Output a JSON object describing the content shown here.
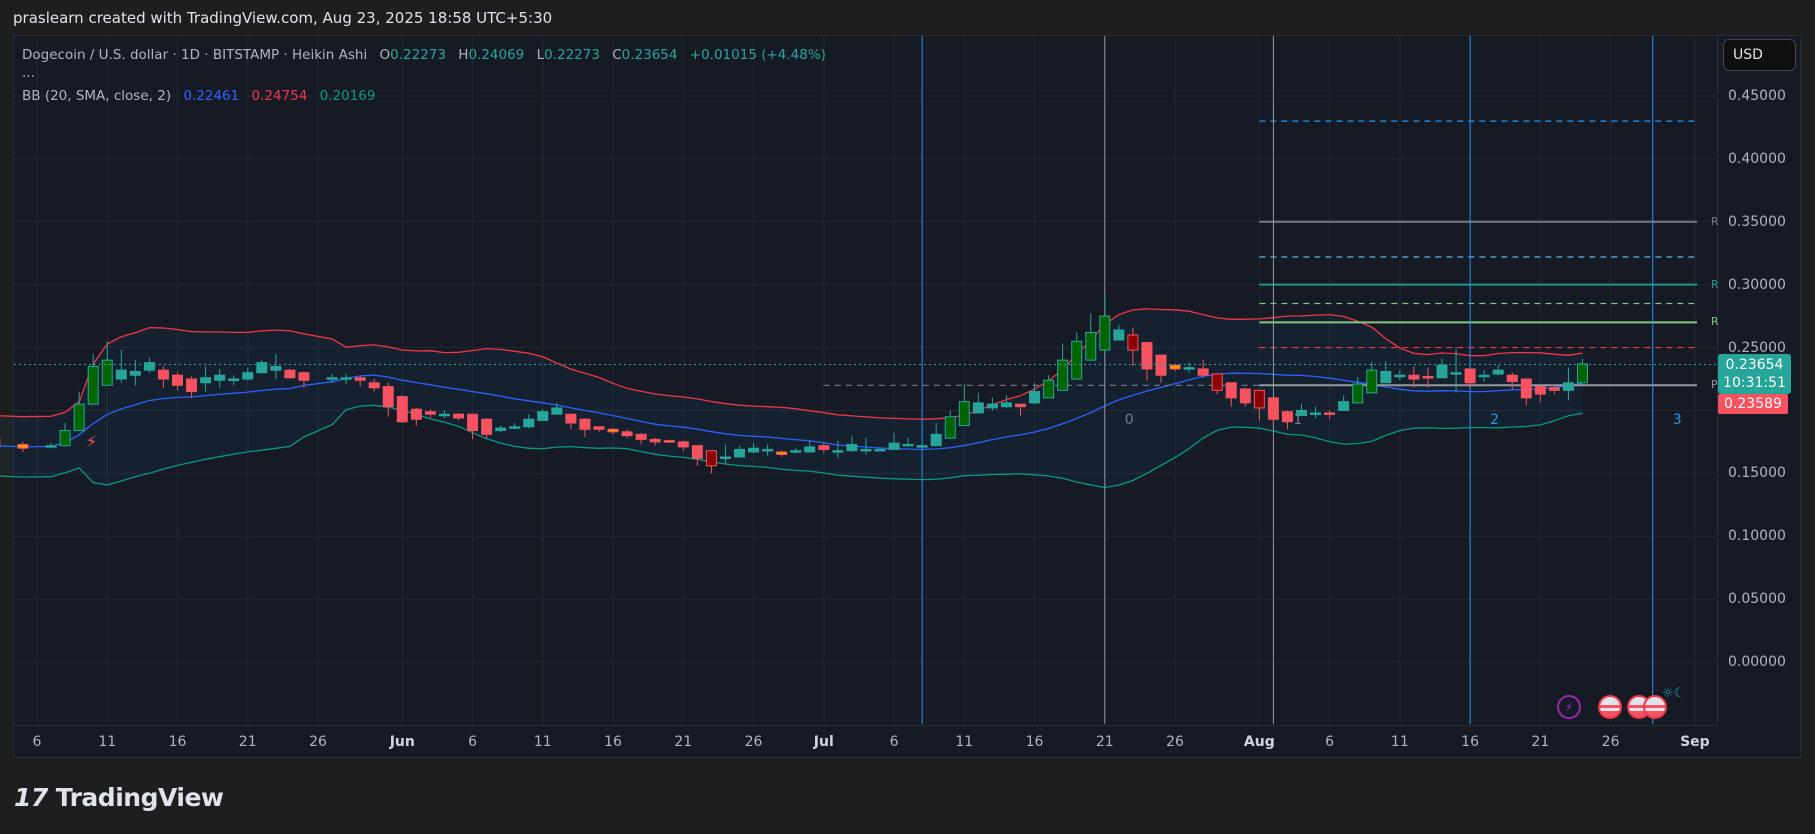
{
  "caption": "praslearn created with TradingView.com, Aug 23, 2025 18:58 UTC+5:30",
  "legend": {
    "symbol": "Dogecoin / U.S. dollar · 1D · BITSTAMP · Heikin Ashi",
    "o_label": "O",
    "o": "0.22273",
    "h_label": "H",
    "h": "0.24069",
    "l_label": "L",
    "l": "0.22273",
    "c_label": "C",
    "c": "0.23654",
    "change": "+0.01015 (+4.48%)",
    "more": "...",
    "bb_label": "BB (20, SMA, close, 2)",
    "bb_basis": "0.22461",
    "bb_upper": "0.24754",
    "bb_lower": "0.20169"
  },
  "currency_button": "USD",
  "price_badge": {
    "price": "0.23654",
    "countdown": "10:31:51",
    "color": "#26a69a"
  },
  "prev_badge": {
    "price": "0.23589",
    "color": "#f7525f"
  },
  "level_labels": {
    "r1": "R",
    "r2": "R",
    "r3": "R",
    "p": "P"
  },
  "fib_time_labels": [
    "0",
    "1",
    "2",
    "3"
  ],
  "logo_text": "TradingView",
  "logo_mark": "17",
  "colors": {
    "up": "#26a69a",
    "down": "#f7525f",
    "up_strong": "#006400",
    "down_strong": "#8b0000",
    "neutral": "#ff9800",
    "bb_basis": "#2962ff",
    "bb_upper": "#f23645",
    "bb_lower": "#089981",
    "background": "#161a25",
    "grid": "#232734",
    "fib_time": "#2196f3"
  },
  "chart_data": {
    "type": "candlestick",
    "title": "Dogecoin / U.S. dollar · 1D · BITSTAMP · Heikin Ashi",
    "ylabel": "USD",
    "ylim": [
      -0.04,
      0.47
    ],
    "y_ticks": [
      "0.45000",
      "0.40000",
      "0.35000",
      "0.30000",
      "0.25000",
      "0.20000",
      "0.15000",
      "0.10000",
      "0.05000",
      "0.00000"
    ],
    "x_ticks": [
      "6",
      "11",
      "16",
      "21",
      "26",
      "Jun",
      "6",
      "11",
      "16",
      "21",
      "26",
      "Jul",
      "6",
      "11",
      "16",
      "21",
      "26",
      "Aug",
      "6",
      "11",
      "16",
      "21",
      "26",
      "Sep"
    ],
    "grid": true,
    "last_price": 0.23654,
    "indicators": {
      "bollinger_bands": {
        "period": 20,
        "type": "SMA",
        "source": "close",
        "stddev": 2,
        "basis": 0.22461,
        "upper": 0.24754,
        "lower": 0.20169
      }
    },
    "horizontal_levels": [
      {
        "label": "",
        "price": 0.43,
        "style": "dashed",
        "color": "#2196f3"
      },
      {
        "label": "R",
        "price": 0.35,
        "style": "solid",
        "color": "#787b86"
      },
      {
        "label": "",
        "price": 0.322,
        "style": "dashed",
        "color": "#5fb8e8"
      },
      {
        "label": "R",
        "price": 0.3,
        "style": "solid",
        "color": "#1a9a8a"
      },
      {
        "label": "",
        "price": 0.285,
        "style": "dashed",
        "color": "#81c784"
      },
      {
        "label": "R",
        "price": 0.27,
        "style": "solid",
        "color": "#81c784"
      },
      {
        "label": "",
        "price": 0.25,
        "style": "dashed",
        "color": "#f23645"
      },
      {
        "label": "P",
        "price": 0.22,
        "style": "solid",
        "color": "#9598a1"
      }
    ],
    "fib_time_zones": [
      "0",
      "1",
      "2",
      "3"
    ],
    "candles_approx": [
      {
        "d": "May 3",
        "o": 0.178,
        "c": 0.172,
        "h": 0.18,
        "l": 0.17
      },
      {
        "d": "May 5",
        "o": 0.173,
        "c": 0.17,
        "h": 0.175,
        "l": 0.167
      },
      {
        "d": "May 7",
        "o": 0.171,
        "c": 0.172,
        "h": 0.174,
        "l": 0.17
      },
      {
        "d": "May 8",
        "o": 0.172,
        "c": 0.184,
        "h": 0.19,
        "l": 0.172
      },
      {
        "d": "May 9",
        "o": 0.184,
        "c": 0.205,
        "h": 0.215,
        "l": 0.184
      },
      {
        "d": "May 10",
        "o": 0.205,
        "c": 0.235,
        "h": 0.245,
        "l": 0.205
      },
      {
        "d": "May 11",
        "o": 0.22,
        "c": 0.24,
        "h": 0.255,
        "l": 0.22
      },
      {
        "d": "May 12",
        "o": 0.225,
        "c": 0.232,
        "h": 0.248,
        "l": 0.222
      },
      {
        "d": "May 13",
        "o": 0.228,
        "c": 0.231,
        "h": 0.24,
        "l": 0.22
      },
      {
        "d": "May 14",
        "o": 0.232,
        "c": 0.238,
        "h": 0.242,
        "l": 0.23
      },
      {
        "d": "May 15",
        "o": 0.232,
        "c": 0.225,
        "h": 0.235,
        "l": 0.218
      },
      {
        "d": "May 16",
        "o": 0.228,
        "c": 0.22,
        "h": 0.23,
        "l": 0.216
      },
      {
        "d": "May 17",
        "o": 0.225,
        "c": 0.215,
        "h": 0.227,
        "l": 0.21
      },
      {
        "d": "May 18",
        "o": 0.222,
        "c": 0.226,
        "h": 0.235,
        "l": 0.215
      },
      {
        "d": "May 19",
        "o": 0.224,
        "c": 0.228,
        "h": 0.233,
        "l": 0.218
      },
      {
        "d": "May 20",
        "o": 0.225,
        "c": 0.225,
        "h": 0.228,
        "l": 0.22
      },
      {
        "d": "May 21",
        "o": 0.225,
        "c": 0.23,
        "h": 0.234,
        "l": 0.224
      },
      {
        "d": "May 22",
        "o": 0.23,
        "c": 0.238,
        "h": 0.24,
        "l": 0.23
      },
      {
        "d": "May 23",
        "o": 0.232,
        "c": 0.235,
        "h": 0.245,
        "l": 0.225
      },
      {
        "d": "May 24",
        "o": 0.232,
        "c": 0.226,
        "h": 0.233,
        "l": 0.225
      },
      {
        "d": "May 25",
        "o": 0.23,
        "c": 0.224,
        "h": 0.231,
        "l": 0.218
      },
      {
        "d": "May 27",
        "o": 0.226,
        "c": 0.226,
        "h": 0.229,
        "l": 0.222
      },
      {
        "d": "May 28",
        "o": 0.226,
        "c": 0.226,
        "h": 0.229,
        "l": 0.221
      },
      {
        "d": "May 29",
        "o": 0.226,
        "c": 0.224,
        "h": 0.227,
        "l": 0.219
      },
      {
        "d": "May 30",
        "o": 0.222,
        "c": 0.218,
        "h": 0.225,
        "l": 0.215
      },
      {
        "d": "May 31",
        "o": 0.219,
        "c": 0.203,
        "h": 0.222,
        "l": 0.195
      },
      {
        "d": "Jun 1",
        "o": 0.211,
        "c": 0.191,
        "h": 0.212,
        "l": 0.19
      },
      {
        "d": "Jun 2",
        "o": 0.201,
        "c": 0.193,
        "h": 0.202,
        "l": 0.188
      },
      {
        "d": "Jun 3",
        "o": 0.199,
        "c": 0.197,
        "h": 0.201,
        "l": 0.194
      },
      {
        "d": "Jun 4",
        "o": 0.197,
        "c": 0.197,
        "h": 0.2,
        "l": 0.194
      },
      {
        "d": "Jun 5",
        "o": 0.197,
        "c": 0.194,
        "h": 0.198,
        "l": 0.192
      },
      {
        "d": "Jun 6",
        "o": 0.197,
        "c": 0.184,
        "h": 0.197,
        "l": 0.177
      },
      {
        "d": "Jun 7",
        "o": 0.193,
        "c": 0.181,
        "h": 0.194,
        "l": 0.178
      },
      {
        "d": "Jun 8",
        "o": 0.184,
        "c": 0.186,
        "h": 0.188,
        "l": 0.183
      },
      {
        "d": "Jun 9",
        "o": 0.186,
        "c": 0.187,
        "h": 0.19,
        "l": 0.185
      },
      {
        "d": "Jun 10",
        "o": 0.187,
        "c": 0.193,
        "h": 0.197,
        "l": 0.186
      },
      {
        "d": "Jun 11",
        "o": 0.192,
        "c": 0.199,
        "h": 0.201,
        "l": 0.192
      },
      {
        "d": "Jun 12",
        "o": 0.197,
        "c": 0.202,
        "h": 0.206,
        "l": 0.197
      },
      {
        "d": "Jun 13",
        "o": 0.197,
        "c": 0.19,
        "h": 0.197,
        "l": 0.185
      },
      {
        "d": "Jun 14",
        "o": 0.193,
        "c": 0.185,
        "h": 0.194,
        "l": 0.179
      },
      {
        "d": "Jun 15",
        "o": 0.187,
        "c": 0.185,
        "h": 0.187,
        "l": 0.183
      },
      {
        "d": "Jun 16",
        "o": 0.185,
        "c": 0.183,
        "h": 0.186,
        "l": 0.181
      },
      {
        "d": "Jun 17",
        "o": 0.183,
        "c": 0.18,
        "h": 0.185,
        "l": 0.178
      },
      {
        "d": "Jun 18",
        "o": 0.181,
        "c": 0.177,
        "h": 0.182,
        "l": 0.173
      },
      {
        "d": "Jun 19",
        "o": 0.177,
        "c": 0.175,
        "h": 0.178,
        "l": 0.172
      },
      {
        "d": "Jun 20",
        "o": 0.176,
        "c": 0.175,
        "h": 0.177,
        "l": 0.174
      },
      {
        "d": "Jun 21",
        "o": 0.175,
        "c": 0.171,
        "h": 0.176,
        "l": 0.168
      },
      {
        "d": "Jun 22",
        "o": 0.172,
        "c": 0.162,
        "h": 0.172,
        "l": 0.156
      },
      {
        "d": "Jun 23",
        "o": 0.168,
        "c": 0.156,
        "h": 0.168,
        "l": 0.15
      },
      {
        "d": "Jun 24",
        "o": 0.163,
        "c": 0.163,
        "h": 0.173,
        "l": 0.158
      },
      {
        "d": "Jun 25",
        "o": 0.163,
        "c": 0.169,
        "h": 0.172,
        "l": 0.163
      },
      {
        "d": "Jun 26",
        "o": 0.167,
        "c": 0.17,
        "h": 0.174,
        "l": 0.166
      },
      {
        "d": "Jun 27",
        "o": 0.169,
        "c": 0.169,
        "h": 0.173,
        "l": 0.164
      },
      {
        "d": "Jun 28",
        "o": 0.167,
        "c": 0.165,
        "h": 0.168,
        "l": 0.163
      },
      {
        "d": "Jun 29",
        "o": 0.167,
        "c": 0.168,
        "h": 0.17,
        "l": 0.166
      },
      {
        "d": "Jun 30",
        "o": 0.167,
        "c": 0.171,
        "h": 0.176,
        "l": 0.167
      },
      {
        "d": "Jul 1",
        "o": 0.172,
        "c": 0.169,
        "h": 0.174,
        "l": 0.166
      },
      {
        "d": "Jul 2",
        "o": 0.168,
        "c": 0.168,
        "h": 0.176,
        "l": 0.162
      },
      {
        "d": "Jul 3",
        "o": 0.168,
        "c": 0.173,
        "h": 0.18,
        "l": 0.167
      },
      {
        "d": "Jul 4",
        "o": 0.169,
        "c": 0.169,
        "h": 0.178,
        "l": 0.165
      },
      {
        "d": "Jul 5",
        "o": 0.169,
        "c": 0.169,
        "h": 0.171,
        "l": 0.168
      },
      {
        "d": "Jul 6",
        "o": 0.169,
        "c": 0.174,
        "h": 0.182,
        "l": 0.169
      },
      {
        "d": "Jul 7",
        "o": 0.173,
        "c": 0.173,
        "h": 0.178,
        "l": 0.172
      },
      {
        "d": "Jul 8",
        "o": 0.172,
        "c": 0.172,
        "h": 0.173,
        "l": 0.171
      },
      {
        "d": "Jul 9",
        "o": 0.172,
        "c": 0.181,
        "h": 0.19,
        "l": 0.172
      },
      {
        "d": "Jul 10",
        "o": 0.178,
        "c": 0.195,
        "h": 0.2,
        "l": 0.178
      },
      {
        "d": "Jul 11",
        "o": 0.188,
        "c": 0.207,
        "h": 0.221,
        "l": 0.188
      },
      {
        "d": "Jul 12",
        "o": 0.198,
        "c": 0.206,
        "h": 0.214,
        "l": 0.198
      },
      {
        "d": "Jul 13",
        "o": 0.202,
        "c": 0.205,
        "h": 0.21,
        "l": 0.2
      },
      {
        "d": "Jul 14",
        "o": 0.203,
        "c": 0.206,
        "h": 0.212,
        "l": 0.202
      },
      {
        "d": "Jul 15",
        "o": 0.205,
        "c": 0.203,
        "h": 0.205,
        "l": 0.196
      },
      {
        "d": "Jul 16",
        "o": 0.206,
        "c": 0.215,
        "h": 0.222,
        "l": 0.205
      },
      {
        "d": "Jul 17",
        "o": 0.21,
        "c": 0.224,
        "h": 0.228,
        "l": 0.21
      },
      {
        "d": "Jul 18",
        "o": 0.216,
        "c": 0.24,
        "h": 0.253,
        "l": 0.216
      },
      {
        "d": "Jul 19",
        "o": 0.225,
        "c": 0.255,
        "h": 0.262,
        "l": 0.225
      },
      {
        "d": "Jul 20",
        "o": 0.24,
        "c": 0.262,
        "h": 0.277,
        "l": 0.24
      },
      {
        "d": "Jul 21",
        "o": 0.248,
        "c": 0.275,
        "h": 0.292,
        "l": 0.248
      },
      {
        "d": "Jul 22",
        "o": 0.256,
        "c": 0.264,
        "h": 0.268,
        "l": 0.256
      },
      {
        "d": "Jul 23",
        "o": 0.26,
        "c": 0.248,
        "h": 0.266,
        "l": 0.235
      },
      {
        "d": "Jul 24",
        "o": 0.254,
        "c": 0.233,
        "h": 0.254,
        "l": 0.224
      },
      {
        "d": "Jul 25",
        "o": 0.244,
        "c": 0.228,
        "h": 0.244,
        "l": 0.222
      },
      {
        "d": "Jul 26",
        "o": 0.236,
        "c": 0.233,
        "h": 0.236,
        "l": 0.231
      },
      {
        "d": "Jul 27",
        "o": 0.234,
        "c": 0.234,
        "h": 0.238,
        "l": 0.23
      },
      {
        "d": "Jul 28",
        "o": 0.233,
        "c": 0.228,
        "h": 0.24,
        "l": 0.226
      },
      {
        "d": "Jul 29",
        "o": 0.229,
        "c": 0.216,
        "h": 0.229,
        "l": 0.213
      },
      {
        "d": "Jul 30",
        "o": 0.222,
        "c": 0.21,
        "h": 0.222,
        "l": 0.203
      },
      {
        "d": "Jul 31",
        "o": 0.217,
        "c": 0.206,
        "h": 0.218,
        "l": 0.203
      },
      {
        "d": "Aug 1",
        "o": 0.216,
        "c": 0.202,
        "h": 0.216,
        "l": 0.192
      },
      {
        "d": "Aug 2",
        "o": 0.21,
        "c": 0.193,
        "h": 0.21,
        "l": 0.189
      },
      {
        "d": "Aug 3",
        "o": 0.199,
        "c": 0.191,
        "h": 0.2,
        "l": 0.185
      },
      {
        "d": "Aug 4",
        "o": 0.196,
        "c": 0.2,
        "h": 0.205,
        "l": 0.196
      },
      {
        "d": "Aug 5",
        "o": 0.198,
        "c": 0.198,
        "h": 0.203,
        "l": 0.194
      },
      {
        "d": "Aug 6",
        "o": 0.198,
        "c": 0.197,
        "h": 0.2,
        "l": 0.193
      },
      {
        "d": "Aug 7",
        "o": 0.2,
        "c": 0.207,
        "h": 0.212,
        "l": 0.2
      },
      {
        "d": "Aug 8",
        "o": 0.206,
        "c": 0.221,
        "h": 0.226,
        "l": 0.206
      },
      {
        "d": "Aug 9",
        "o": 0.214,
        "c": 0.232,
        "h": 0.239,
        "l": 0.214
      },
      {
        "d": "Aug 10",
        "o": 0.222,
        "c": 0.231,
        "h": 0.239,
        "l": 0.222
      },
      {
        "d": "Aug 11",
        "o": 0.227,
        "c": 0.228,
        "h": 0.232,
        "l": 0.224
      },
      {
        "d": "Aug 12",
        "o": 0.228,
        "c": 0.225,
        "h": 0.235,
        "l": 0.218
      },
      {
        "d": "Aug 13",
        "o": 0.227,
        "c": 0.226,
        "h": 0.234,
        "l": 0.218
      },
      {
        "d": "Aug 14",
        "o": 0.226,
        "c": 0.236,
        "h": 0.241,
        "l": 0.226
      },
      {
        "d": "Aug 15",
        "o": 0.23,
        "c": 0.23,
        "h": 0.25,
        "l": 0.214
      },
      {
        "d": "Aug 16",
        "o": 0.233,
        "c": 0.222,
        "h": 0.233,
        "l": 0.218
      },
      {
        "d": "Aug 17",
        "o": 0.228,
        "c": 0.228,
        "h": 0.232,
        "l": 0.223
      },
      {
        "d": "Aug 18",
        "o": 0.229,
        "c": 0.232,
        "h": 0.236,
        "l": 0.228
      },
      {
        "d": "Aug 19",
        "o": 0.228,
        "c": 0.223,
        "h": 0.23,
        "l": 0.217
      },
      {
        "d": "Aug 20",
        "o": 0.225,
        "c": 0.21,
        "h": 0.225,
        "l": 0.204
      },
      {
        "d": "Aug 21",
        "o": 0.219,
        "c": 0.213,
        "h": 0.219,
        "l": 0.207
      },
      {
        "d": "Aug 22",
        "o": 0.218,
        "c": 0.216,
        "h": 0.219,
        "l": 0.213
      },
      {
        "d": "Aug 23",
        "o": 0.216,
        "c": 0.222,
        "h": 0.234,
        "l": 0.208
      },
      {
        "d": "Aug 24",
        "o": 0.222,
        "c": 0.237,
        "h": 0.241,
        "l": 0.222
      }
    ]
  }
}
